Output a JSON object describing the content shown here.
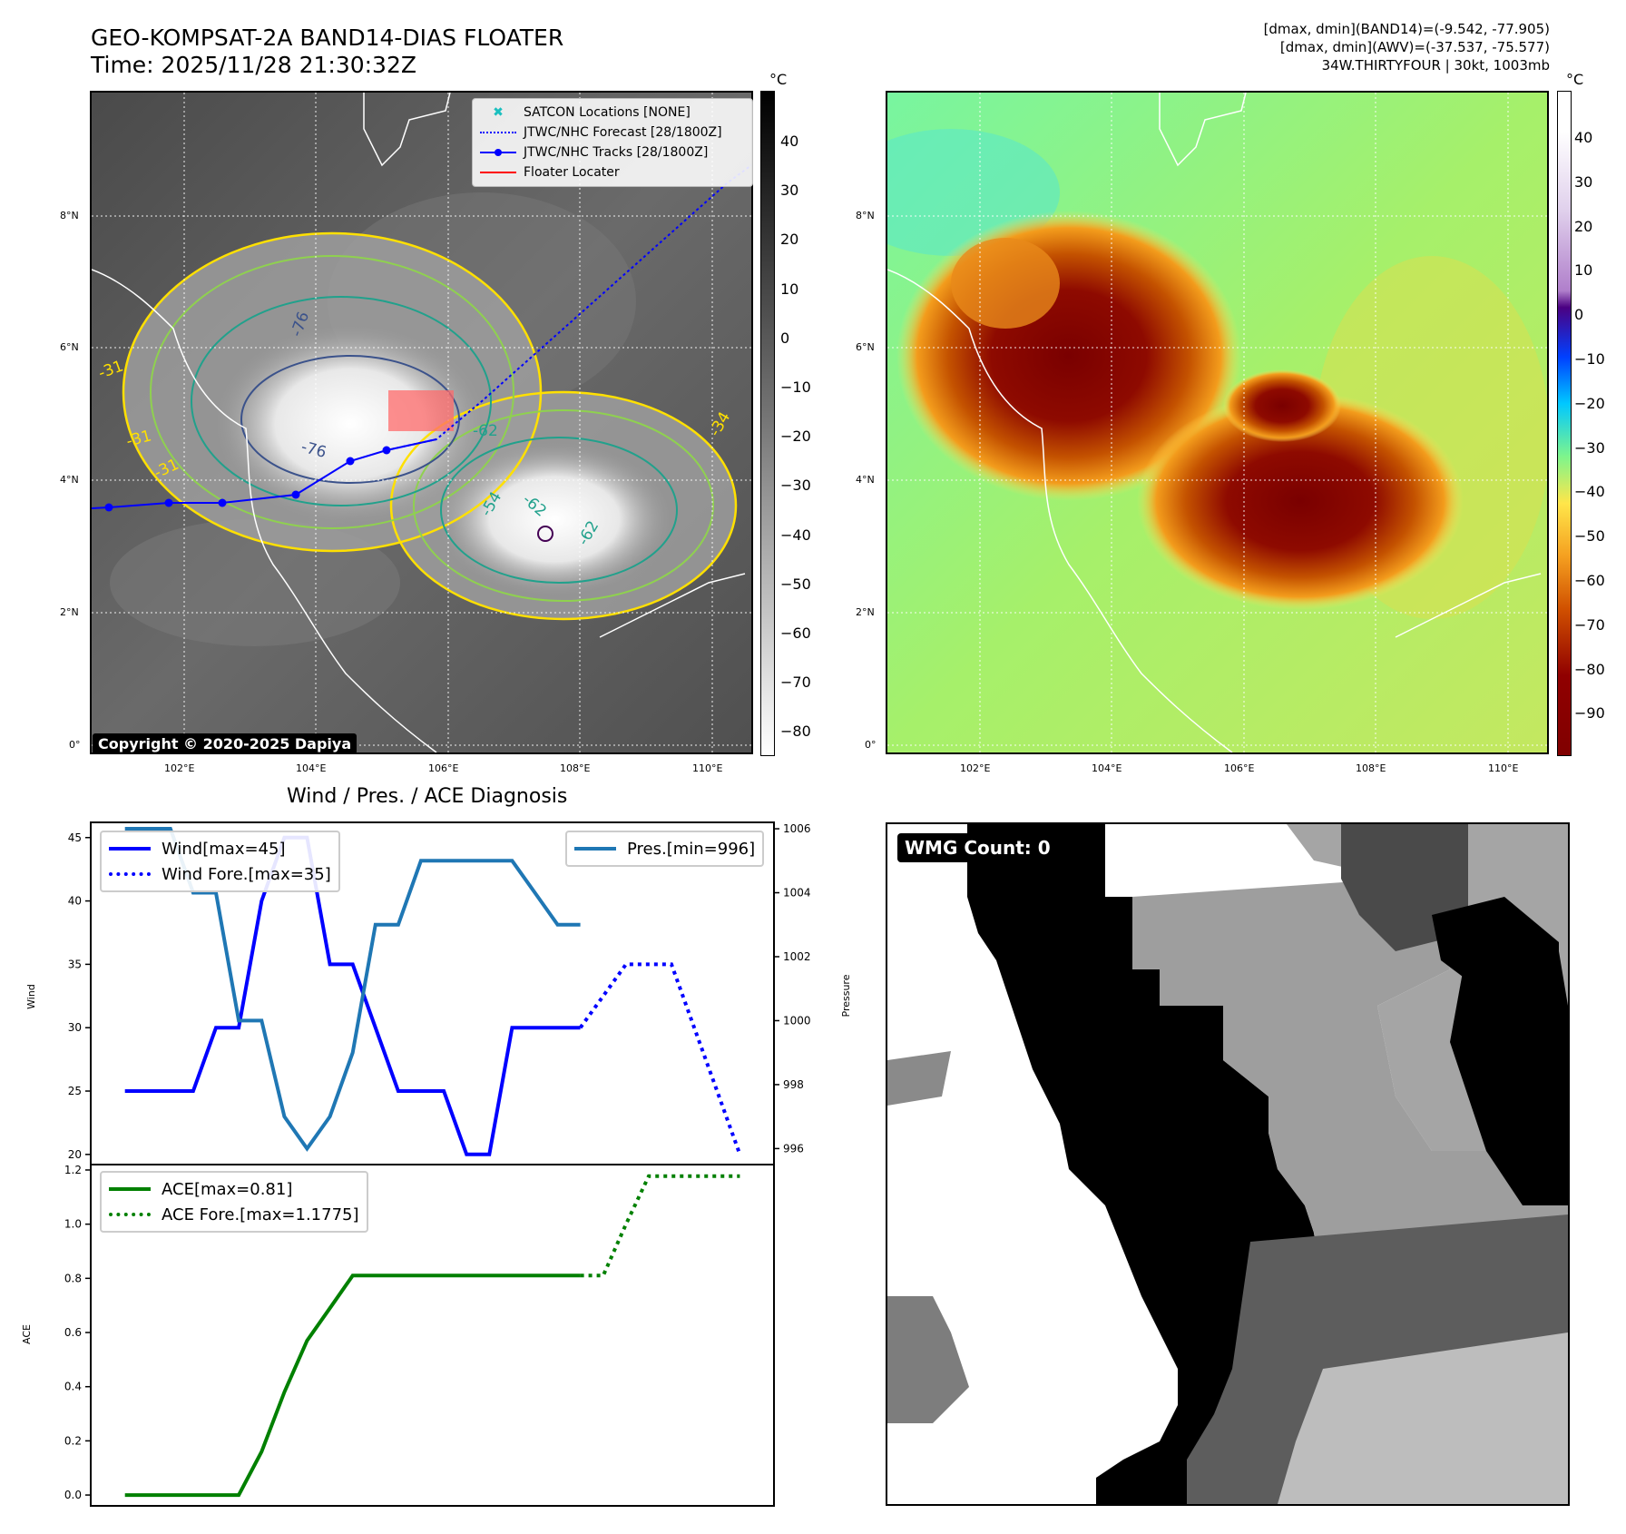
{
  "header": {
    "title_line1": "GEO-KOMPSAT-2A BAND14-DIAS FLOATER",
    "title_line2": "Time: 2025/11/28 21:30:32Z",
    "stats_line1": "[dmax, dmin](BAND14)=(-9.542, -77.905)",
    "stats_line2": "[dmax, dmin](AWV)=(-37.537, -75.577)",
    "stats_line3": "34W.THIRTYFOUR | 30kt, 1003mb"
  },
  "map": {
    "lat_labels": [
      "8°N",
      "6°N",
      "4°N",
      "2°N",
      "0°"
    ],
    "lon_labels": [
      "102°E",
      "104°E",
      "106°E",
      "108°E",
      "110°E"
    ],
    "contour_labels": [
      "-31",
      "-31",
      "-31",
      "-76",
      "-76",
      "-62",
      "-54",
      "-62",
      "-62",
      "-34"
    ],
    "colorbar_unit": "°C",
    "colorbar_left_ticks": [
      "40",
      "30",
      "20",
      "10",
      "0",
      "−10",
      "−20",
      "−30",
      "−40",
      "−50",
      "−60",
      "−70",
      "−80"
    ],
    "colorbar_right_ticks": [
      "40",
      "30",
      "20",
      "10",
      "0",
      "−10",
      "−20",
      "−30",
      "−40",
      "−50",
      "−60",
      "−70",
      "−80",
      "−90"
    ],
    "legend": [
      {
        "label": "SATCON Locations [NONE]",
        "color": "#1abfbf"
      },
      {
        "label": "JTWC/NHC Forecast [28/1800Z]",
        "color": "#0000ff"
      },
      {
        "label": "JTWC/NHC Tracks [28/1800Z]",
        "color": "#0000ff"
      },
      {
        "label": "Floater Locater",
        "color": "#ff0000"
      }
    ],
    "copyright": "Copyright © 2020-2025 Dapiya"
  },
  "wmg": {
    "label": "WMG Count: 0"
  },
  "chart_data": [
    {
      "type": "line",
      "title": "Wind / Pres. / ACE Diagnosis",
      "ylabel": "Wind",
      "ylabel_right": "Pressure",
      "ylim": [
        19.2,
        46.2
      ],
      "ylim_right": [
        995.5,
        1006.2
      ],
      "xlim": [
        -1.5,
        28.5
      ],
      "yticks": [
        "45",
        "40",
        "35",
        "30",
        "25",
        "20"
      ],
      "yticks_right": [
        "1006",
        "1004",
        "1002",
        "1000",
        "998",
        "996"
      ],
      "series": [
        {
          "name": "Wind[max=45]",
          "color": "#0000ff",
          "style": "solid",
          "x": [
            0,
            1,
            2,
            3,
            4,
            5,
            6,
            7,
            8,
            9,
            10,
            11,
            12,
            13,
            14,
            15,
            16,
            17,
            18,
            19,
            20
          ],
          "values": [
            25,
            25,
            25,
            25,
            30,
            30,
            40,
            45,
            45,
            35,
            35,
            30,
            25,
            25,
            25,
            20,
            20,
            30,
            30,
            30,
            30
          ]
        },
        {
          "name": "Wind Fore.[max=35]",
          "color": "#0000ff",
          "style": "dotted",
          "x": [
            20,
            21,
            22,
            23,
            24,
            25,
            26,
            27
          ],
          "values": [
            30,
            32.5,
            35,
            35,
            35,
            30,
            25,
            20
          ]
        },
        {
          "name": "Pres.[min=996]",
          "color": "#1f77b4",
          "style": "solid",
          "axis": "right",
          "x": [
            0,
            1,
            2,
            3,
            4,
            5,
            6,
            7,
            8,
            9,
            10,
            11,
            12,
            13,
            14,
            15,
            16,
            17,
            18,
            19,
            20
          ],
          "values": [
            1006,
            1006,
            1006,
            1004,
            1004,
            1000,
            1000,
            997,
            996,
            997,
            999,
            1003,
            1003,
            1005,
            1005,
            1005,
            1005,
            1005,
            1004,
            1003,
            1003
          ]
        }
      ]
    },
    {
      "type": "line",
      "ylabel": "ACE",
      "ylim": [
        -0.04,
        1.22
      ],
      "xlim": [
        -1.5,
        28.5
      ],
      "yticks": [
        "1.2",
        "1.0",
        "0.8",
        "0.6",
        "0.4",
        "0.2",
        "0.0"
      ],
      "series": [
        {
          "name": "ACE[max=0.81]",
          "color": "#008000",
          "style": "solid",
          "x": [
            0,
            1,
            2,
            3,
            4,
            5,
            6,
            7,
            8,
            9,
            10,
            11,
            12,
            13,
            14,
            15,
            16,
            17,
            18,
            19,
            20
          ],
          "values": [
            0,
            0,
            0,
            0,
            0,
            0,
            0.16,
            0.38,
            0.57,
            0.69,
            0.81,
            0.81,
            0.81,
            0.81,
            0.81,
            0.81,
            0.81,
            0.81,
            0.81,
            0.81,
            0.81
          ]
        },
        {
          "name": "ACE Fore.[max=1.1775]",
          "color": "#008000",
          "style": "dotted",
          "x": [
            20,
            21,
            22,
            23,
            24,
            25,
            26,
            27
          ],
          "values": [
            0.81,
            0.81,
            1.0,
            1.1775,
            1.1775,
            1.1775,
            1.1775,
            1.1775
          ]
        }
      ]
    }
  ]
}
